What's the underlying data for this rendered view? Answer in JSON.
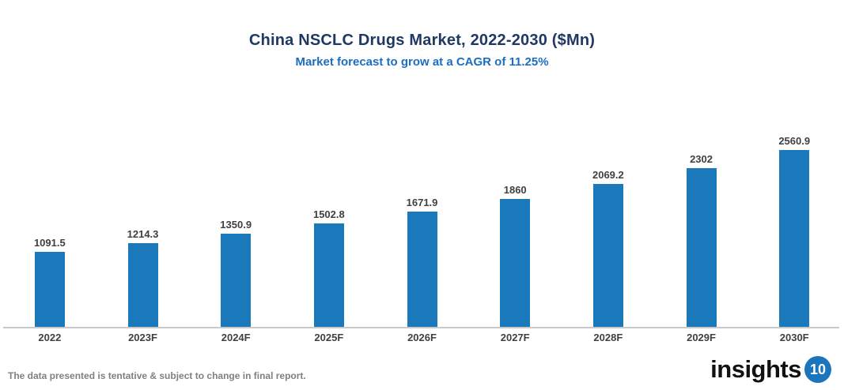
{
  "header": {
    "title": "China NSCLC Drugs Market, 2022-2030 ($Mn)",
    "subtitle": "Market forecast to grow at a CAGR of 11.25%"
  },
  "chart_data": {
    "type": "bar",
    "title": "China NSCLC Drugs Market, 2022-2030 ($Mn)",
    "subtitle": "Market forecast to grow at a CAGR of 11.25%",
    "categories": [
      "2022",
      "2023F",
      "2024F",
      "2025F",
      "2026F",
      "2027F",
      "2028F",
      "2029F",
      "2030F"
    ],
    "values": [
      1091.5,
      1214.3,
      1350.9,
      1502.8,
      1671.9,
      1860,
      2069.2,
      2302,
      2560.9
    ],
    "data_labels": [
      "1091.5",
      "1214.3",
      "1350.9",
      "1502.8",
      "1671.9",
      "1860",
      "2069.2",
      "2302",
      "2560.9"
    ],
    "xlabel": "",
    "ylabel": "",
    "ylim": [
      0,
      2800
    ],
    "grid": false,
    "legend": null,
    "bar_color": "#1A79BB"
  },
  "footer": {
    "disclaimer": "The data presented is tentative & subject to change in final report.",
    "logo_text": "insights",
    "logo_badge": "10"
  },
  "colors": {
    "title": "#1F3864",
    "subtitle": "#1B6EC2",
    "bar": "#1A79BB",
    "label": "#404040",
    "axis_line": "#C9C9C9",
    "footer_text": "#808080",
    "logo_badge_bg": "#1B75BC"
  }
}
